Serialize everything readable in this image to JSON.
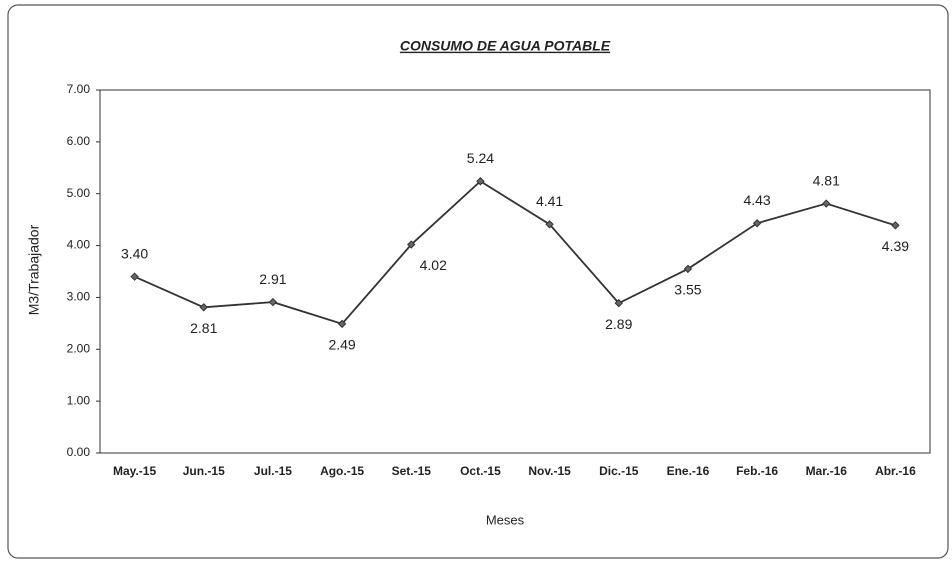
{
  "chart_data": {
    "type": "line",
    "title": "CONSUMO DE AGUA POTABLE",
    "x_label": "Meses",
    "y_label": "M3/Trabajador",
    "categories": [
      "May.-15",
      "Jun.-15",
      "Jul.-15",
      "Ago.-15",
      "Set.-15",
      "Oct.-15",
      "Nov.-15",
      "Dic.-15",
      "Ene.-16",
      "Feb.-16",
      "Mar.-16",
      "Abr.-16"
    ],
    "values": [
      3.4,
      2.81,
      2.91,
      2.49,
      4.02,
      5.24,
      4.41,
      2.89,
      3.55,
      4.43,
      4.81,
      4.39
    ],
    "value_labels": [
      "3.40",
      "2.81",
      "2.91",
      "2.49",
      "4.02",
      "5.24",
      "4.41",
      "2.89",
      "3.55",
      "4.43",
      "4.81",
      "4.39"
    ],
    "color": "#333333",
    "ylim": [
      0,
      7
    ],
    "yticks": [
      {
        "value": 0,
        "label": "0.00"
      },
      {
        "value": 1,
        "label": "1.00"
      },
      {
        "value": 2,
        "label": "2.00"
      },
      {
        "value": 3,
        "label": "3.00"
      },
      {
        "value": 4,
        "label": "4.00"
      },
      {
        "value": 5,
        "label": "5.00"
      },
      {
        "value": 6,
        "label": "6.00"
      },
      {
        "value": 7,
        "label": "7.00"
      }
    ],
    "grid": false
  }
}
